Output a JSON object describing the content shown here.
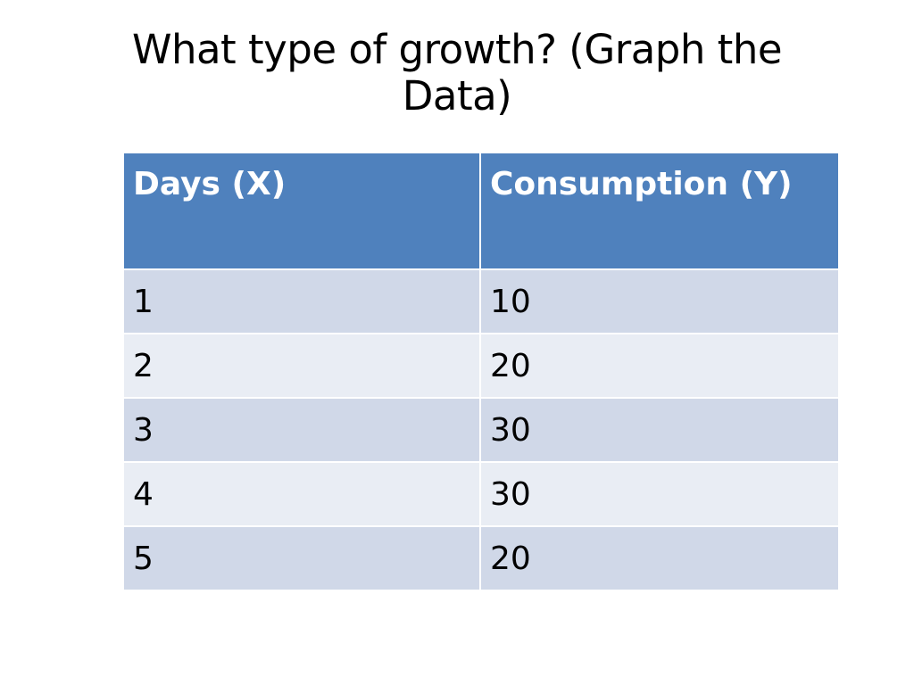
{
  "slide": {
    "title": "What type of growth? (Graph the Data)"
  },
  "table": {
    "headers": [
      "Days (X)",
      "Consumption (Y)"
    ],
    "rows": [
      [
        "1",
        "10"
      ],
      [
        "2",
        "20"
      ],
      [
        "3",
        "30"
      ],
      [
        "4",
        "30"
      ],
      [
        "5",
        "20"
      ]
    ]
  },
  "colors": {
    "header_bg": "#4f81bd",
    "row_odd_bg": "#d0d8e8",
    "row_even_bg": "#e9edf4",
    "header_text": "#ffffff"
  }
}
